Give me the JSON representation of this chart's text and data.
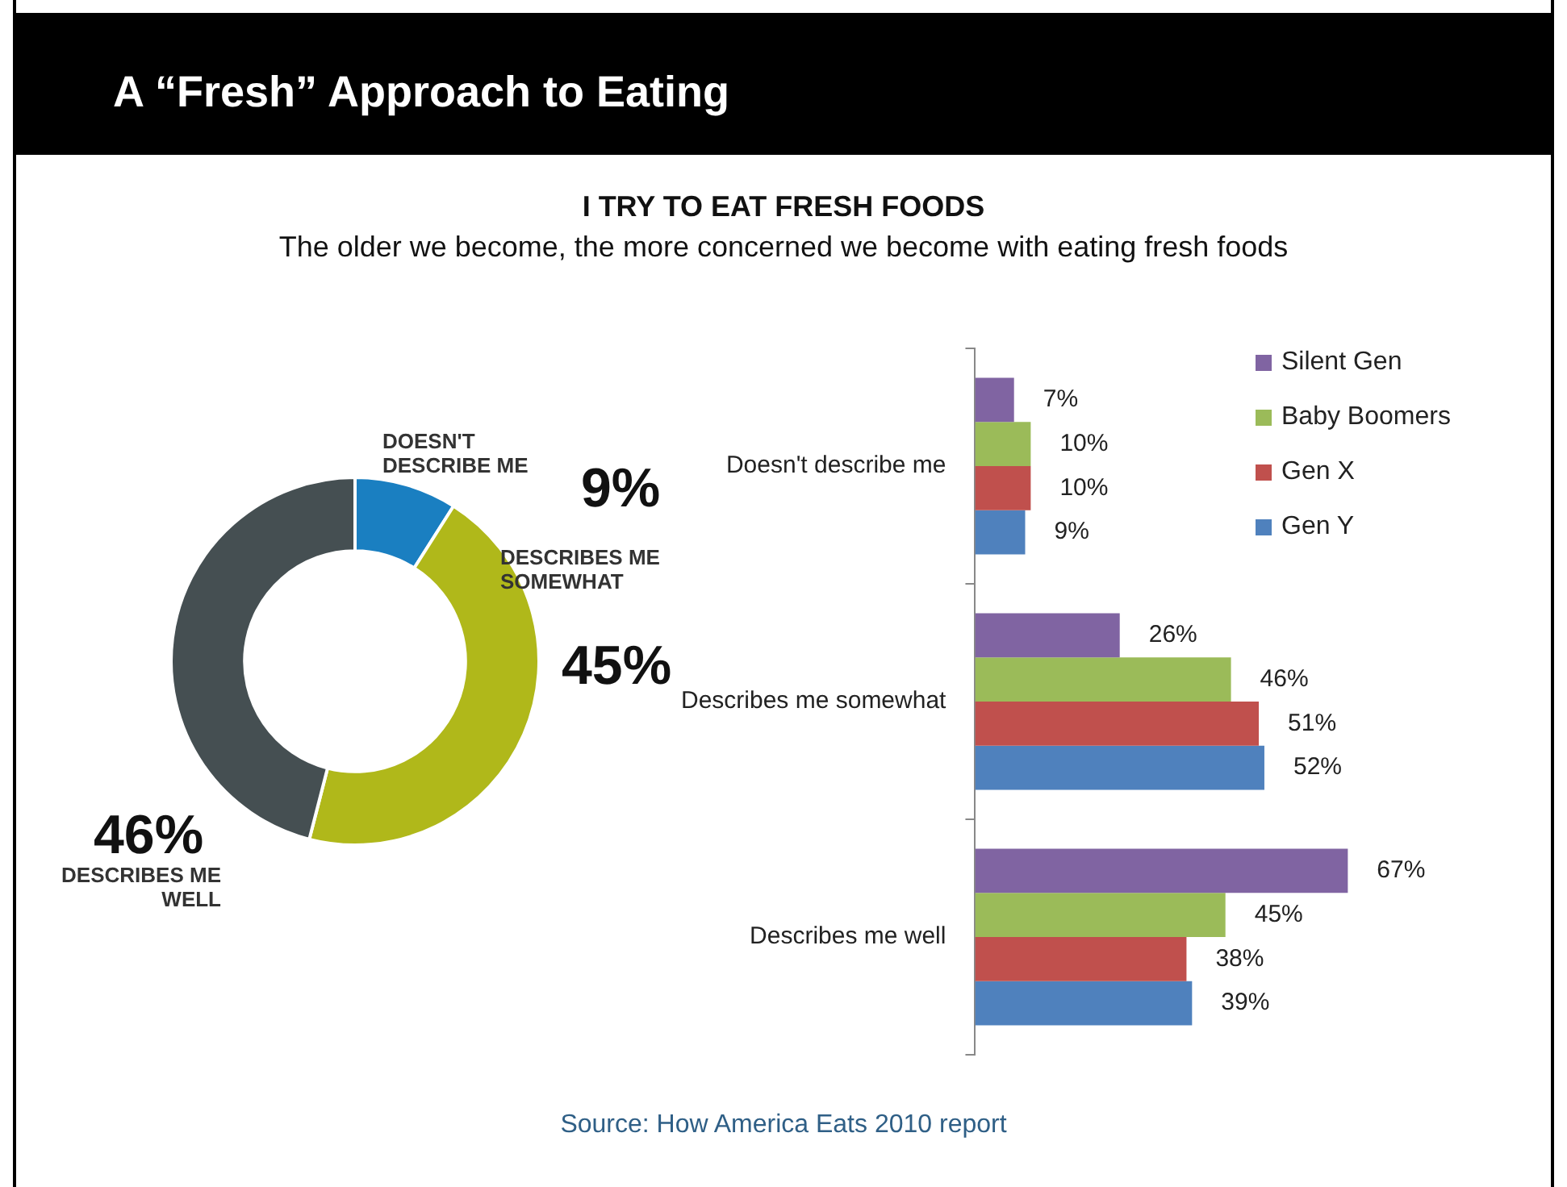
{
  "chart_data": [
    {
      "type": "donut",
      "title": "A “Fresh” Approach to Eating",
      "categories": [
        "DOESN'T DESCRIBE ME",
        "DESCRIBES ME SOMEWHAT",
        "DESCRIBES ME WELL"
      ],
      "values": [
        9,
        45,
        46
      ],
      "value_labels": [
        "9%",
        "45%",
        "46%"
      ],
      "colors": [
        "#1a7fc1",
        "#b0b81a",
        "#454f52"
      ]
    },
    {
      "type": "bar",
      "orientation": "horizontal",
      "title": "I TRY TO EAT FRESH FOODS",
      "subtitle": "The older we become, the more concerned we become with eating fresh foods",
      "categories": [
        "Doesn't describe me",
        "Describes me somewhat",
        "Describes me well"
      ],
      "series": [
        {
          "name": "Silent Gen",
          "color": "#8064a2",
          "values": [
            7,
            26,
            67
          ],
          "value_labels": [
            "7%",
            "26%",
            "67%"
          ]
        },
        {
          "name": "Baby Boomers",
          "color": "#9bbb59",
          "values": [
            10,
            46,
            45
          ],
          "value_labels": [
            "10%",
            "46%",
            "45%"
          ]
        },
        {
          "name": "Gen X",
          "color": "#c0504d",
          "values": [
            10,
            51,
            38
          ],
          "value_labels": [
            "10%",
            "51%",
            "38%"
          ]
        },
        {
          "name": "Gen Y",
          "color": "#4f81bd",
          "values": [
            9,
            52,
            39
          ],
          "value_labels": [
            "9%",
            "52%",
            "39%"
          ]
        }
      ],
      "legend": "top right",
      "annotations": [
        "Source: How America Eats 2010 report"
      ]
    }
  ]
}
